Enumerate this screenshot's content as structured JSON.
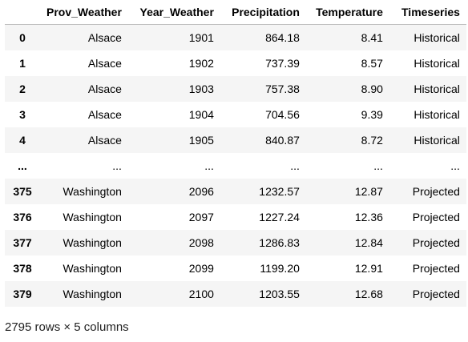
{
  "table": {
    "index_header": "",
    "columns": [
      "Prov_Weather",
      "Year_Weather",
      "Precipitation",
      "Temperature",
      "Timeseries"
    ],
    "rows": [
      {
        "index": "0",
        "cells": [
          "Alsace",
          "1901",
          "864.18",
          "8.41",
          "Historical"
        ]
      },
      {
        "index": "1",
        "cells": [
          "Alsace",
          "1902",
          "737.39",
          "8.57",
          "Historical"
        ]
      },
      {
        "index": "2",
        "cells": [
          "Alsace",
          "1903",
          "757.38",
          "8.90",
          "Historical"
        ]
      },
      {
        "index": "3",
        "cells": [
          "Alsace",
          "1904",
          "704.56",
          "9.39",
          "Historical"
        ]
      },
      {
        "index": "4",
        "cells": [
          "Alsace",
          "1905",
          "840.87",
          "8.72",
          "Historical"
        ]
      },
      {
        "index": "...",
        "cells": [
          "...",
          "...",
          "...",
          "...",
          "..."
        ]
      },
      {
        "index": "375",
        "cells": [
          "Washington",
          "2096",
          "1232.57",
          "12.87",
          "Projected"
        ]
      },
      {
        "index": "376",
        "cells": [
          "Washington",
          "2097",
          "1227.24",
          "12.36",
          "Projected"
        ]
      },
      {
        "index": "377",
        "cells": [
          "Washington",
          "2098",
          "1286.83",
          "12.84",
          "Projected"
        ]
      },
      {
        "index": "378",
        "cells": [
          "Washington",
          "2099",
          "1199.20",
          "12.91",
          "Projected"
        ]
      },
      {
        "index": "379",
        "cells": [
          "Washington",
          "2100",
          "1203.55",
          "12.68",
          "Projected"
        ]
      }
    ]
  },
  "footer": {
    "shape_text": "2795 rows × 5 columns"
  }
}
